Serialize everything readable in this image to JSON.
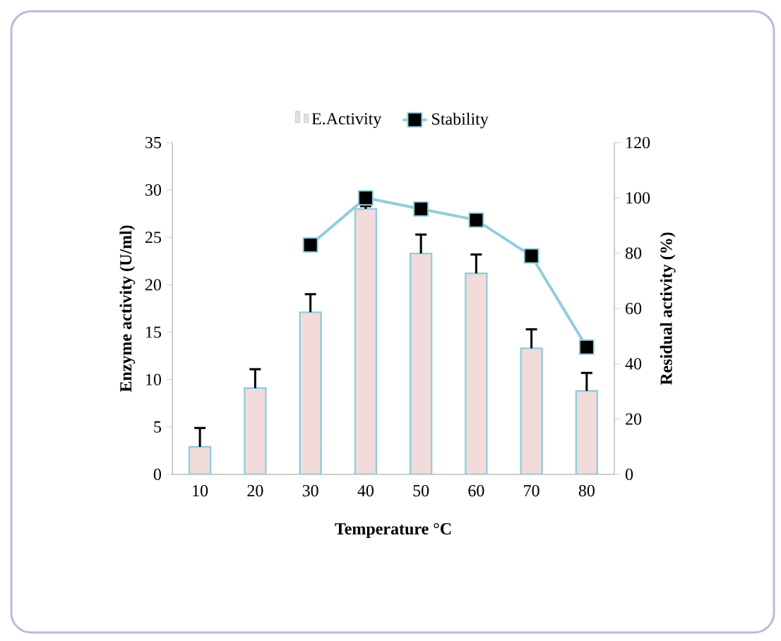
{
  "chart_data": {
    "type": "bar",
    "xlabel": "Temperature °C",
    "ylabel": "Enzyme activity (U/ml)",
    "y2label": "Residual activity (%)",
    "categories": [
      "10",
      "20",
      "30",
      "40",
      "50",
      "60",
      "70",
      "80"
    ],
    "series": [
      {
        "name": "E.Activity",
        "color": "#f2dcdb",
        "values": [
          2.9,
          9.1,
          17.1,
          28,
          23.3,
          21.2,
          13.3,
          8.8
        ],
        "errors": [
          [
            2.9,
            4.9
          ],
          [
            9.1,
            11.1
          ],
          [
            17.1,
            19
          ],
          [
            28,
            28.3
          ],
          [
            23.3,
            25.3
          ],
          [
            21.2,
            23.2
          ],
          [
            13.3,
            15.3
          ],
          [
            8.8,
            10.7
          ]
        ]
      },
      {
        "name": "Stability",
        "type": "line",
        "axis": "y2",
        "color": "#92cddc",
        "marker": "square",
        "values": [
          null,
          null,
          83,
          100,
          96,
          92,
          79,
          46
        ]
      }
    ],
    "ylim": [
      0,
      35
    ],
    "yticks": [
      0,
      5,
      10,
      15,
      20,
      25,
      30,
      35
    ],
    "y2lim": [
      0,
      120
    ],
    "y2ticks": [
      0,
      20,
      40,
      60,
      80,
      100,
      120
    ],
    "legend": "top",
    "grid": false
  }
}
